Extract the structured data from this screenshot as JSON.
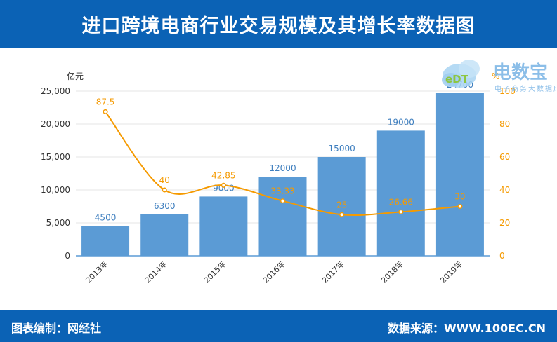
{
  "header": {
    "title": "进口跨境电商行业交易规模及其增长率数据图"
  },
  "footer": {
    "left": "图表编制：网经社",
    "right": "数据来源：WWW.100EC.CN"
  },
  "logo": {
    "name": "电数宝",
    "sub": "电子商务大数据库",
    "mark": "eDT"
  },
  "colors": {
    "header_bg": "#0b62b5",
    "bar": "#5b9bd5",
    "line": "#f59a00",
    "axis_text": "#333333"
  },
  "chart_data": {
    "type": "bar",
    "categories": [
      "2013年",
      "2014年",
      "2015年",
      "2016年",
      "2017年",
      "2018年",
      "2019年"
    ],
    "series": [
      {
        "name": "交易规模",
        "type": "bar",
        "axis": "left",
        "values": [
          4500,
          6300,
          9000,
          12000,
          15000,
          19000,
          24700
        ],
        "labels": [
          "4500",
          "6300",
          "9000",
          "12000",
          "15000",
          "19000",
          "24700"
        ]
      },
      {
        "name": "增长率",
        "type": "line",
        "axis": "right",
        "values": [
          87.5,
          40,
          42.85,
          33.33,
          25,
          26.66,
          30
        ],
        "labels": [
          "87.5",
          "40",
          "42.85",
          "33.33",
          "25",
          "26.66",
          "30"
        ]
      }
    ],
    "yleft": {
      "unit": "亿元",
      "range": [
        0,
        25000
      ],
      "ticks": [
        0,
        5000,
        10000,
        15000,
        20000,
        25000
      ],
      "tick_labels": [
        "0",
        "5,000",
        "10,000",
        "15,000",
        "20,000",
        "25,000"
      ]
    },
    "yright": {
      "unit": "%",
      "range": [
        0,
        100
      ],
      "ticks": [
        0,
        20,
        40,
        60,
        80,
        100
      ],
      "tick_labels": [
        "0",
        "20",
        "40",
        "60",
        "80",
        "100"
      ]
    },
    "grid": true,
    "legend": "none"
  }
}
